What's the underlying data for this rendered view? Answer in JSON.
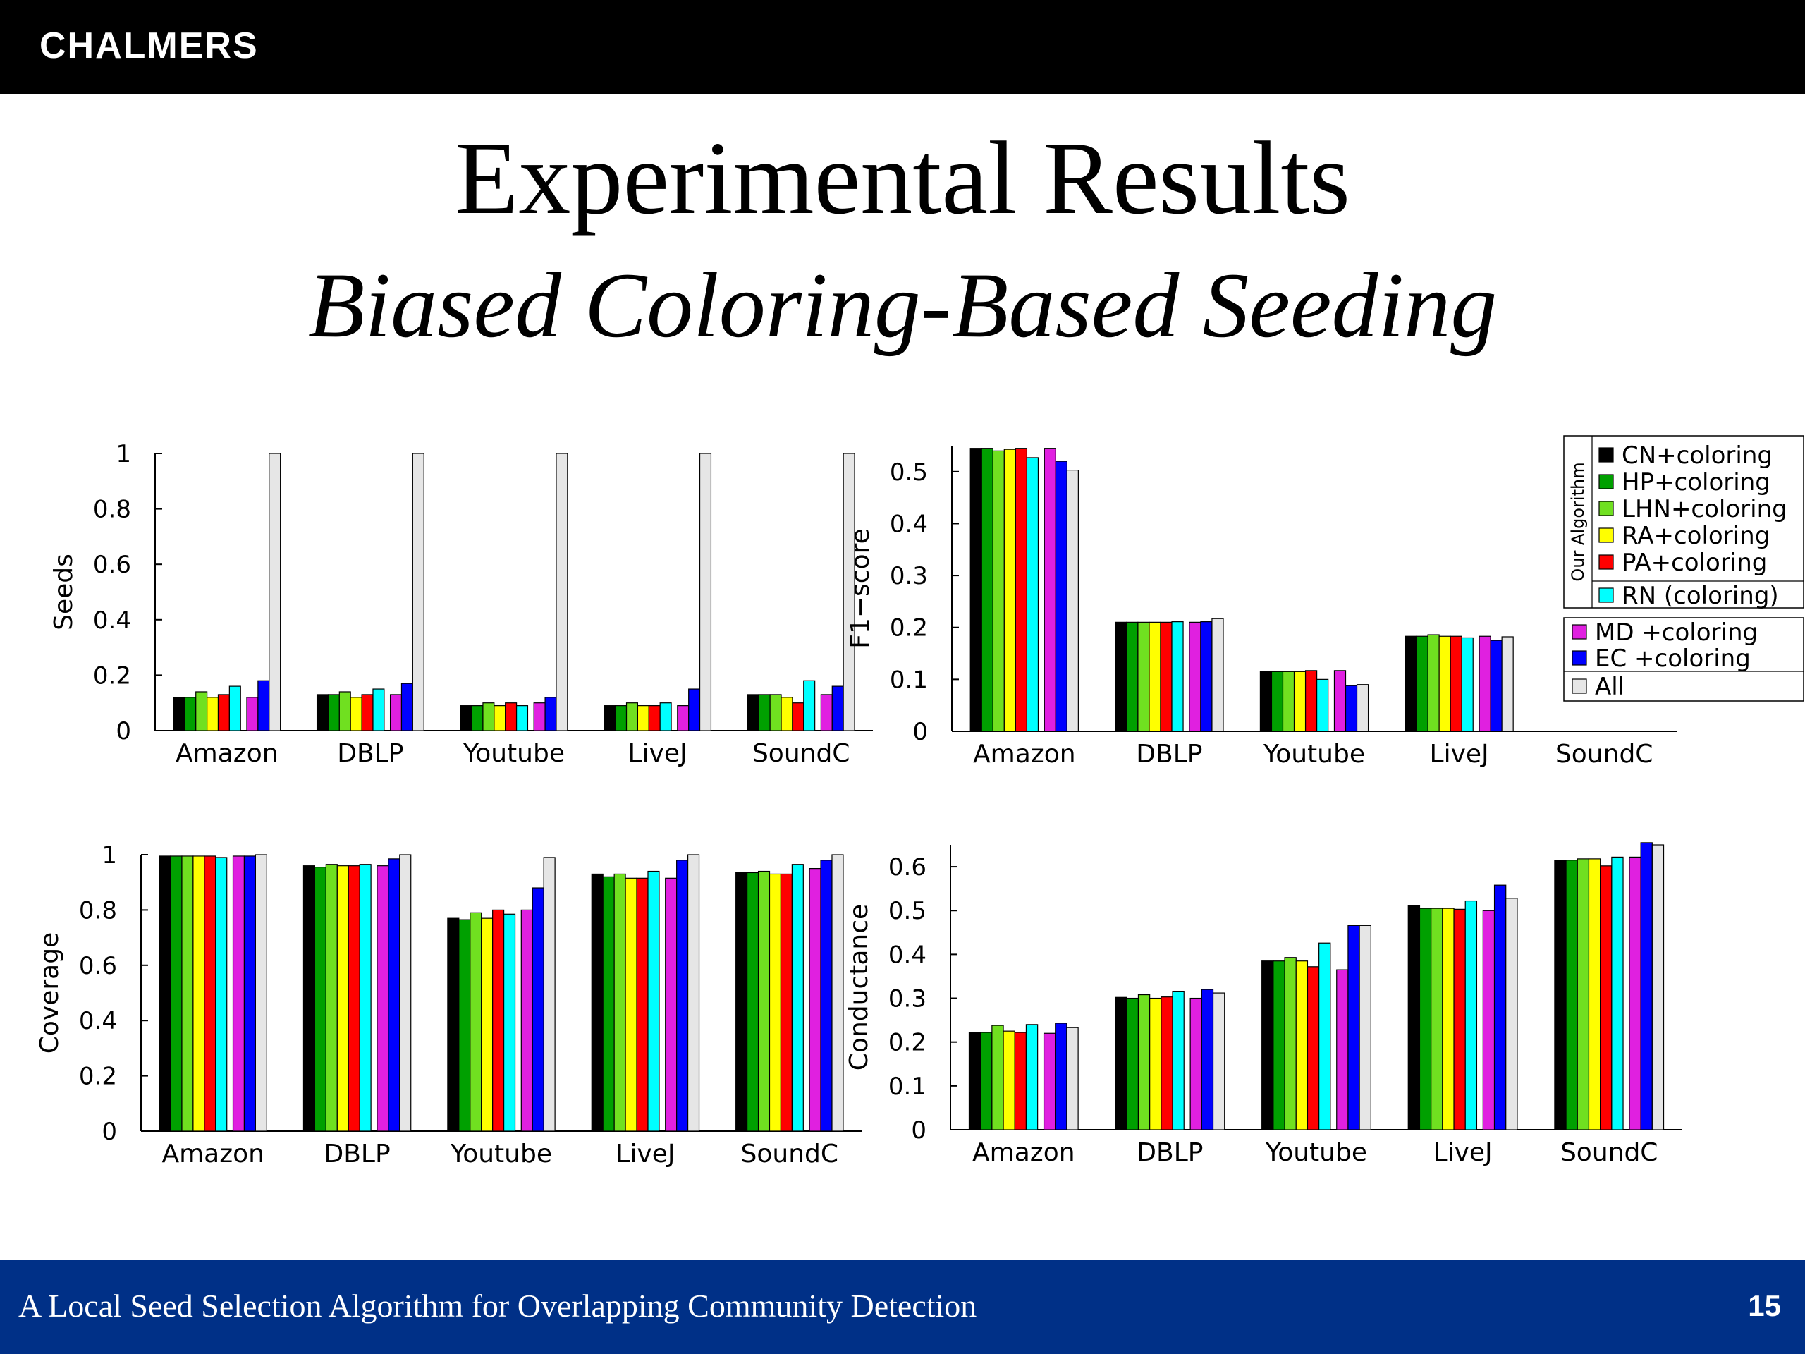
{
  "slide": {
    "logo": "CHALMERS",
    "title": "Experimental Results",
    "subtitle": "Biased Coloring-Based Seeding",
    "footer_text": "A Local Seed Selection Algorithm for Overlapping Community Detection",
    "page_number": "15"
  },
  "legend": {
    "group_label": "Our Algorithm",
    "entries": [
      {
        "label": "CN+coloring",
        "color": "#000000"
      },
      {
        "label": "HP+coloring",
        "color": "#00a000"
      },
      {
        "label": "LHN+coloring",
        "color": "#70e020"
      },
      {
        "label": "RA+coloring",
        "color": "#ffff00"
      },
      {
        "label": "PA+coloring",
        "color": "#ff0000"
      },
      {
        "label": "RN (coloring)",
        "color": "#00ffff"
      },
      {
        "label": "MD +coloring",
        "color": "#e020e0"
      },
      {
        "label": "EC +coloring",
        "color": "#0000ff"
      },
      {
        "label": "All",
        "color": "#e6e6e6"
      }
    ]
  },
  "chart_data": [
    {
      "type": "bar",
      "ylabel": "Seeds",
      "categories": [
        "Amazon",
        "DBLP",
        "Youtube",
        "LiveJ",
        "SoundC"
      ],
      "ylim": [
        0,
        1
      ],
      "yticks": [
        0,
        0.2,
        0.4,
        0.6,
        0.8,
        1
      ],
      "ytick_labels": [
        "0",
        "0.2",
        "0.4",
        "0.6",
        "0.8",
        "1"
      ],
      "series": [
        {
          "name": "CN+coloring",
          "values": [
            0.12,
            0.13,
            0.09,
            0.09,
            0.13
          ]
        },
        {
          "name": "HP+coloring",
          "values": [
            0.12,
            0.13,
            0.09,
            0.09,
            0.13
          ]
        },
        {
          "name": "LHN+coloring",
          "values": [
            0.14,
            0.14,
            0.1,
            0.1,
            0.13
          ]
        },
        {
          "name": "RA+coloring",
          "values": [
            0.12,
            0.12,
            0.09,
            0.09,
            0.12
          ]
        },
        {
          "name": "PA+coloring",
          "values": [
            0.13,
            0.13,
            0.1,
            0.09,
            0.1
          ]
        },
        {
          "name": "RN (coloring)",
          "values": [
            0.16,
            0.15,
            0.09,
            0.1,
            0.18
          ]
        },
        {
          "name": "MD +coloring",
          "values": [
            0.12,
            0.13,
            0.1,
            0.09,
            0.13
          ]
        },
        {
          "name": "EC +coloring",
          "values": [
            0.18,
            0.17,
            0.12,
            0.15,
            0.16
          ]
        },
        {
          "name": "All",
          "values": [
            1.0,
            1.0,
            1.0,
            1.0,
            1.0
          ]
        }
      ]
    },
    {
      "type": "bar",
      "ylabel": "F1−score",
      "categories": [
        "Amazon",
        "DBLP",
        "Youtube",
        "LiveJ",
        "SoundC"
      ],
      "ylim": [
        0,
        0.55
      ],
      "yticks": [
        0,
        0.1,
        0.2,
        0.3,
        0.4,
        0.5
      ],
      "ytick_labels": [
        "0",
        "0.1",
        "0.2",
        "0.3",
        "0.4",
        "0.5"
      ],
      "series": [
        {
          "name": "CN+coloring",
          "values": [
            0.545,
            0.21,
            0.115,
            0.183,
            null
          ]
        },
        {
          "name": "HP+coloring",
          "values": [
            0.545,
            0.21,
            0.115,
            0.183,
            null
          ]
        },
        {
          "name": "LHN+coloring",
          "values": [
            0.54,
            0.21,
            0.115,
            0.186,
            null
          ]
        },
        {
          "name": "RA+coloring",
          "values": [
            0.543,
            0.21,
            0.115,
            0.183,
            null
          ]
        },
        {
          "name": "PA+coloring",
          "values": [
            0.545,
            0.21,
            0.117,
            0.183,
            null
          ]
        },
        {
          "name": "RN (coloring)",
          "values": [
            0.527,
            0.211,
            0.1,
            0.18,
            null
          ]
        },
        {
          "name": "MD +coloring",
          "values": [
            0.545,
            0.21,
            0.117,
            0.183,
            null
          ]
        },
        {
          "name": "EC +coloring",
          "values": [
            0.52,
            0.211,
            0.088,
            0.175,
            null
          ]
        },
        {
          "name": "All",
          "values": [
            0.503,
            0.217,
            0.09,
            0.182,
            null
          ]
        }
      ]
    },
    {
      "type": "bar",
      "ylabel": "Coverage",
      "categories": [
        "Amazon",
        "DBLP",
        "Youtube",
        "LiveJ",
        "SoundC"
      ],
      "ylim": [
        0,
        1
      ],
      "yticks": [
        0,
        0.2,
        0.4,
        0.6,
        0.8,
        1
      ],
      "ytick_labels": [
        "0",
        "0.2",
        "0.4",
        "0.6",
        "0.8",
        "1"
      ],
      "series": [
        {
          "name": "CN+coloring",
          "values": [
            0.995,
            0.96,
            0.77,
            0.93,
            0.935
          ]
        },
        {
          "name": "HP+coloring",
          "values": [
            0.995,
            0.955,
            0.765,
            0.92,
            0.935
          ]
        },
        {
          "name": "LHN+coloring",
          "values": [
            0.995,
            0.965,
            0.79,
            0.93,
            0.94
          ]
        },
        {
          "name": "RA+coloring",
          "values": [
            0.995,
            0.96,
            0.77,
            0.915,
            0.93
          ]
        },
        {
          "name": "PA+coloring",
          "values": [
            0.995,
            0.96,
            0.8,
            0.915,
            0.93
          ]
        },
        {
          "name": "RN (coloring)",
          "values": [
            0.99,
            0.965,
            0.785,
            0.94,
            0.965
          ]
        },
        {
          "name": "MD +coloring",
          "values": [
            0.995,
            0.96,
            0.8,
            0.915,
            0.95
          ]
        },
        {
          "name": "EC +coloring",
          "values": [
            0.995,
            0.985,
            0.88,
            0.98,
            0.98
          ]
        },
        {
          "name": "All",
          "values": [
            1.0,
            1.0,
            0.99,
            1.0,
            1.0
          ]
        }
      ]
    },
    {
      "type": "bar",
      "ylabel": "Conductance",
      "categories": [
        "Amazon",
        "DBLP",
        "Youtube",
        "LiveJ",
        "SoundC"
      ],
      "ylim": [
        0,
        0.65
      ],
      "yticks": [
        0,
        0.1,
        0.2,
        0.3,
        0.4,
        0.5,
        0.6
      ],
      "ytick_labels": [
        "0",
        "0.1",
        "0.2",
        "0.3",
        "0.4",
        "0.5",
        "0.6"
      ],
      "series": [
        {
          "name": "CN+coloring",
          "values": [
            0.222,
            0.302,
            0.385,
            0.512,
            0.615
          ]
        },
        {
          "name": "HP+coloring",
          "values": [
            0.222,
            0.3,
            0.385,
            0.505,
            0.615
          ]
        },
        {
          "name": "LHN+coloring",
          "values": [
            0.238,
            0.308,
            0.393,
            0.505,
            0.618
          ]
        },
        {
          "name": "RA+coloring",
          "values": [
            0.225,
            0.3,
            0.385,
            0.505,
            0.618
          ]
        },
        {
          "name": "PA+coloring",
          "values": [
            0.222,
            0.303,
            0.372,
            0.503,
            0.602
          ]
        },
        {
          "name": "RN (coloring)",
          "values": [
            0.24,
            0.316,
            0.426,
            0.522,
            0.622
          ]
        },
        {
          "name": "MD +coloring",
          "values": [
            0.22,
            0.3,
            0.365,
            0.5,
            0.622
          ]
        },
        {
          "name": "EC +coloring",
          "values": [
            0.243,
            0.32,
            0.466,
            0.558,
            0.655
          ]
        },
        {
          "name": "All",
          "values": [
            0.233,
            0.312,
            0.466,
            0.528,
            0.65
          ]
        }
      ]
    }
  ]
}
